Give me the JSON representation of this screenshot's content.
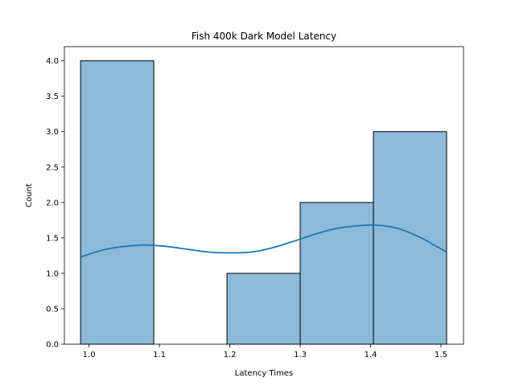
{
  "chart_data": {
    "type": "histogram",
    "title": "Fish 400k Dark Model Latency",
    "xlabel": "Latency Times",
    "ylabel": "Count",
    "xlim": [
      0.965,
      1.532
    ],
    "ylim": [
      0,
      4.2
    ],
    "xticks": [
      1.0,
      1.1,
      1.2,
      1.3,
      1.4,
      1.5
    ],
    "xtick_labels": [
      "1.0",
      "1.1",
      "1.2",
      "1.3",
      "1.4",
      "1.5"
    ],
    "yticks": [
      0.0,
      0.5,
      1.0,
      1.5,
      2.0,
      2.5,
      3.0,
      3.5,
      4.0
    ],
    "ytick_labels": [
      "0.0",
      "0.5",
      "1.0",
      "1.5",
      "2.0",
      "2.5",
      "3.0",
      "3.5",
      "4.0"
    ],
    "bins": [
      {
        "x0": 0.988,
        "x1": 1.092,
        "count": 4
      },
      {
        "x0": 1.092,
        "x1": 1.196,
        "count": 0
      },
      {
        "x0": 1.196,
        "x1": 1.3,
        "count": 1
      },
      {
        "x0": 1.3,
        "x1": 1.404,
        "count": 2
      },
      {
        "x0": 1.404,
        "x1": 1.508,
        "count": 3
      }
    ],
    "kde": {
      "x": [
        0.988,
        1.02,
        1.05,
        1.08,
        1.11,
        1.14,
        1.17,
        1.2,
        1.23,
        1.26,
        1.29,
        1.32,
        1.35,
        1.38,
        1.41,
        1.44,
        1.47,
        1.49,
        1.508
      ],
      "y": [
        1.23,
        1.33,
        1.38,
        1.4,
        1.38,
        1.34,
        1.3,
        1.29,
        1.3,
        1.36,
        1.45,
        1.55,
        1.63,
        1.67,
        1.68,
        1.63,
        1.51,
        1.4,
        1.3
      ]
    },
    "grid": false,
    "colors": {
      "bar_fill": "#8ebad9",
      "bar_edge": "#000000",
      "kde_line": "#1f77b4"
    }
  }
}
